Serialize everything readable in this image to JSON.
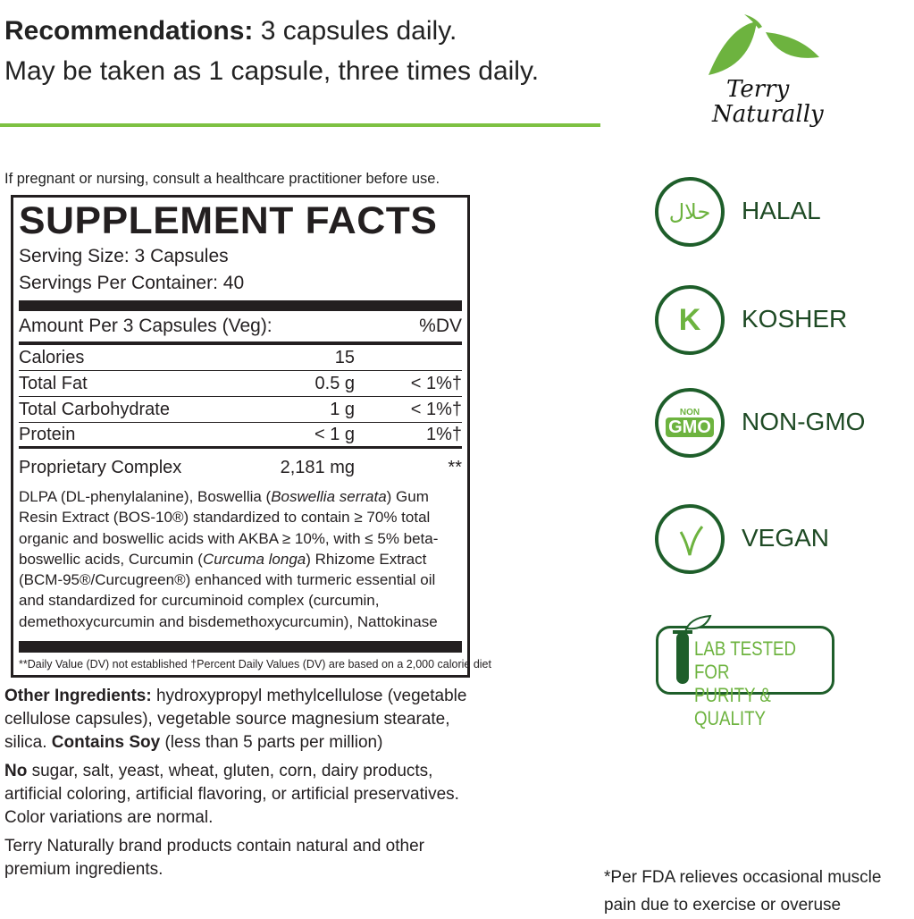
{
  "recommendations": {
    "label": "Recommendations:",
    "line1": "3 capsules daily.",
    "line2": "May be taken as 1 capsule, three times daily."
  },
  "brand": {
    "name_line1": "Terry",
    "name_line2": "Naturally",
    "leaf_color": "#6db33f"
  },
  "warning": "If pregnant or nursing, consult a healthcare practitioner before use.",
  "facts": {
    "title": "SUPPLEMENT FACTS",
    "serving_size": "Serving Size: 3 Capsules",
    "servings_per_container": "Servings Per Container: 40",
    "amount_header": "Amount Per 3 Capsules (Veg):",
    "dv_header": "%DV",
    "rows": [
      {
        "name": "Calories",
        "amount": "15",
        "dv": ""
      },
      {
        "name": "Total Fat",
        "amount": "0.5 g",
        "dv": "< 1%†"
      },
      {
        "name": "Total Carbohydrate",
        "amount": "1 g",
        "dv": "< 1%†"
      },
      {
        "name": "Protein",
        "amount": "< 1 g",
        "dv": "1%†"
      }
    ],
    "complex": {
      "name": "Proprietary Complex",
      "amount": "2,181 mg",
      "dv": "**"
    },
    "ingredients": {
      "p1": "DLPA (DL-phenylalanine), Boswellia (",
      "i1": "Boswellia serrata",
      "p2": ") Gum Resin Extract (BOS-10®) standardized to contain ≥ 70% total organic and boswellic acids with AKBA ≥ 10%, with ≤ 5% beta-boswellic acids, Curcumin (",
      "i2": "Curcuma longa",
      "p3": ") Rhizome Extract (BCM-95®/Curcugreen®) enhanced with turmeric essential oil and standardized for curcuminoid complex (curcumin, demethoxycurcumin and bisdemethoxycurcumin), Nattokinase"
    },
    "footnote": "**Daily Value (DV) not established   †Percent Daily Values (DV) are based on a 2,000 calorie diet"
  },
  "other": {
    "label": "Other Ingredients:",
    "text": " hydroxypropyl methylcellulose (vegetable cellulose capsules), vegetable source magnesium stearate, silica. ",
    "soy_label": "Contains Soy",
    "soy_text": " (less than 5 parts per million)",
    "no_label": "No",
    "no_text": " sugar, salt, yeast, wheat, gluten, corn, dairy products, artificial coloring, artificial flavoring, or artificial preservatives. Color variations are normal.",
    "brand_note": "Terry Naturally brand products contain natural and other premium ingredients."
  },
  "badges": [
    {
      "icon": "halal-icon",
      "glyph": "حلال",
      "label": "HALAL"
    },
    {
      "icon": "kosher-icon",
      "glyph": "K",
      "label": "KOSHER"
    },
    {
      "icon": "non-gmo-icon",
      "glyph_top": "NON",
      "glyph_bottom": "GMO",
      "label": "NON-GMO"
    },
    {
      "icon": "vegan-icon",
      "label": "VEGAN"
    }
  ],
  "lab_badge": {
    "line1": "LAB TESTED FOR",
    "line2": "PURITY & QUALITY"
  },
  "fda_note": "*Per FDA relieves occasional muscle pain due to exercise or overuse",
  "colors": {
    "dark_green": "#1e5e2a",
    "light_green": "#6db33f",
    "line_green": "#7dc142"
  }
}
